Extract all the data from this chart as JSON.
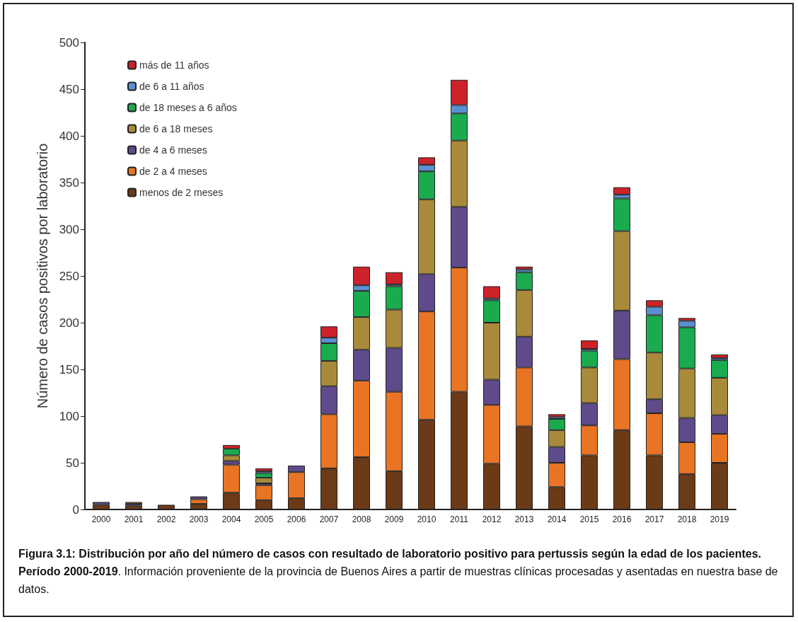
{
  "chart_data": {
    "type": "bar",
    "stacked": true,
    "ylabel": "Número de casos positivos por laboratorio",
    "categories": [
      "2000",
      "2001",
      "2002",
      "2003",
      "2004",
      "2005",
      "2006",
      "2007",
      "2008",
      "2009",
      "2010",
      "2011",
      "2012",
      "2013",
      "2014",
      "2015",
      "2016",
      "2017",
      "2018",
      "2019"
    ],
    "series": [
      {
        "name": "menos de 2 meses",
        "color": "#6b3a17",
        "values": [
          5,
          4,
          5,
          6,
          18,
          10,
          12,
          44,
          56,
          41,
          96,
          126,
          49,
          89,
          24,
          58,
          85,
          58,
          38,
          50
        ]
      },
      {
        "name": "de 2 a 4 meses",
        "color": "#e87424",
        "values": [
          0,
          0,
          0,
          5,
          30,
          16,
          28,
          58,
          82,
          85,
          116,
          133,
          63,
          63,
          26,
          32,
          76,
          45,
          34,
          31
        ]
      },
      {
        "name": "de 4 a 6 meses",
        "color": "#5f4b8b",
        "values": [
          3,
          2,
          0,
          3,
          4,
          2,
          7,
          30,
          33,
          47,
          40,
          65,
          27,
          33,
          17,
          24,
          52,
          15,
          26,
          20
        ]
      },
      {
        "name": "de 6 a 18 meses",
        "color": "#a88a3a",
        "values": [
          0,
          2,
          0,
          0,
          6,
          6,
          0,
          27,
          35,
          41,
          80,
          71,
          61,
          50,
          18,
          38,
          85,
          50,
          53,
          40
        ]
      },
      {
        "name": "de 18 meses a 6 años",
        "color": "#1aab4f",
        "values": [
          0,
          0,
          0,
          0,
          7,
          5,
          0,
          19,
          28,
          25,
          30,
          29,
          24,
          19,
          12,
          18,
          35,
          40,
          44,
          19
        ]
      },
      {
        "name": "de 6 a 11 años",
        "color": "#5b8fd1",
        "values": [
          0,
          0,
          0,
          0,
          0,
          2,
          0,
          6,
          6,
          2,
          7,
          9,
          2,
          3,
          2,
          2,
          4,
          9,
          7,
          2
        ]
      },
      {
        "name": "más de 11 años",
        "color": "#cc2229",
        "values": [
          0,
          0,
          0,
          0,
          4,
          3,
          0,
          12,
          20,
          13,
          8,
          27,
          13,
          3,
          3,
          9,
          8,
          7,
          3,
          4
        ]
      }
    ],
    "ylim": [
      0,
      500
    ],
    "yticks": [
      0,
      50,
      100,
      150,
      200,
      250,
      300,
      350,
      400,
      450,
      500
    ],
    "grid": false,
    "legend": "top left",
    "annotations": [
      "Figura 3.1: Distribución por año del número de casos con resultado de laboratorio positivo para pertussis según la edad de los pacientes. Período 2000-2019",
      ". Información proveniente de la provincia de Buenos Aires a partir de muestras clínicas procesadas y asentadas en nuestra base de datos."
    ]
  }
}
